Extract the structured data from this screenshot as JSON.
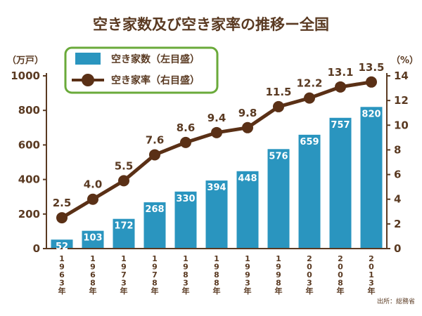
{
  "chart_data": {
    "type": "bar+line",
    "title": "空き家数及び空き家率の推移ー全国",
    "left_axis_unit": "（万戸）",
    "right_axis_unit": "（%）",
    "categories": [
      "1963年",
      "1968年",
      "1973年",
      "1978年",
      "1983年",
      "1988年",
      "1993年",
      "1998年",
      "2003年",
      "2008年",
      "2013年"
    ],
    "series": [
      {
        "name": "空き家数（左目盛）",
        "type": "bar",
        "axis": "left",
        "values": [
          52,
          103,
          172,
          268,
          330,
          394,
          448,
          576,
          659,
          757,
          820
        ]
      },
      {
        "name": "空き家率（右目盛）",
        "type": "line",
        "axis": "right",
        "values": [
          2.5,
          4.0,
          5.5,
          7.6,
          8.6,
          9.4,
          9.8,
          11.5,
          12.2,
          13.1,
          13.5
        ]
      }
    ],
    "value_labels": {
      "bar": [
        "52",
        "103",
        "172",
        "268",
        "330",
        "394",
        "448",
        "576",
        "659",
        "757",
        "820"
      ],
      "line": [
        "2.5",
        "4.0",
        "5.5",
        "7.6",
        "8.6",
        "9.4",
        "9.8",
        "11.5",
        "12.2",
        "13.1",
        "13.5"
      ]
    },
    "left_axis": {
      "ylim": [
        0,
        1000
      ],
      "ticks": [
        "0",
        "200",
        "400",
        "600",
        "800",
        "1000"
      ]
    },
    "right_axis": {
      "ylim": [
        0,
        14
      ],
      "ticks": [
        "0",
        "2",
        "4",
        "6",
        "8",
        "10",
        "12",
        "14"
      ]
    },
    "legend_position": "top-left",
    "grid": false,
    "colors": {
      "bar": "#2a95bf",
      "line": "#5a3016",
      "text": "#5a3a22",
      "legend_border": "#6aaa3a",
      "axis": "#5a3a22"
    },
    "source": "出所：総務省"
  }
}
